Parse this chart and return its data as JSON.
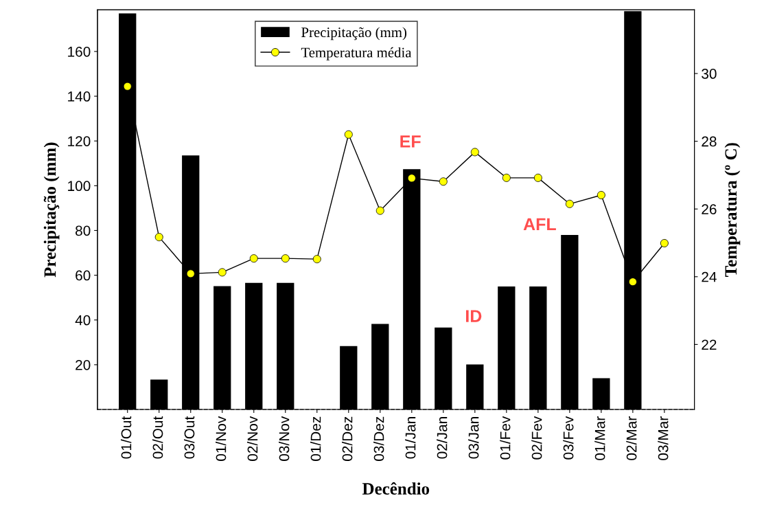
{
  "chart_data": {
    "type": "bar",
    "xlabel": "Decêndio",
    "ylabel": "Precipitação (mm)",
    "y2label": "Temperatura (º C)",
    "categories": [
      "01/Out",
      "02/Out",
      "03/Out",
      "01/Nov",
      "02/Nov",
      "03/Nov",
      "01/Dez",
      "02/Dez",
      "03/Dez",
      "01/Jan",
      "02/Jan",
      "03/Jan",
      "01/Fev",
      "02/Fev",
      "03/Fev",
      "01/Mar",
      "02/Mar",
      "03/Mar"
    ],
    "series": [
      {
        "name": "Precipitação (mm)",
        "color": "#000000",
        "values": [
          177,
          13.4,
          113.5,
          55.1,
          56.6,
          56.6,
          0,
          28.3,
          38.2,
          107.4,
          36.6,
          20.1,
          55.0,
          55.0,
          78.0,
          14.0,
          178,
          0
        ]
      },
      {
        "name": "Temperatura média",
        "type": "line",
        "axis": "y2",
        "color": "#ffff00",
        "marker": "circle",
        "line_style": "solid",
        "values": [
          29.62,
          25.17,
          24.09,
          24.13,
          24.54,
          24.54,
          24.52,
          28.2,
          25.95,
          26.91,
          26.81,
          27.68,
          26.92,
          26.92,
          26.15,
          26.41,
          23.85,
          24.99
        ]
      }
    ],
    "ylim": [
      0,
      178.6
    ],
    "yticks": [
      20,
      40,
      60,
      80,
      100,
      120,
      140,
      160
    ],
    "y2lim": [
      20.08,
      31.88
    ],
    "y2ticks": [
      22,
      24,
      26,
      28,
      30
    ],
    "annotations": [
      "EF",
      "ID",
      "AFL"
    ],
    "grid": false,
    "legend": "top"
  }
}
